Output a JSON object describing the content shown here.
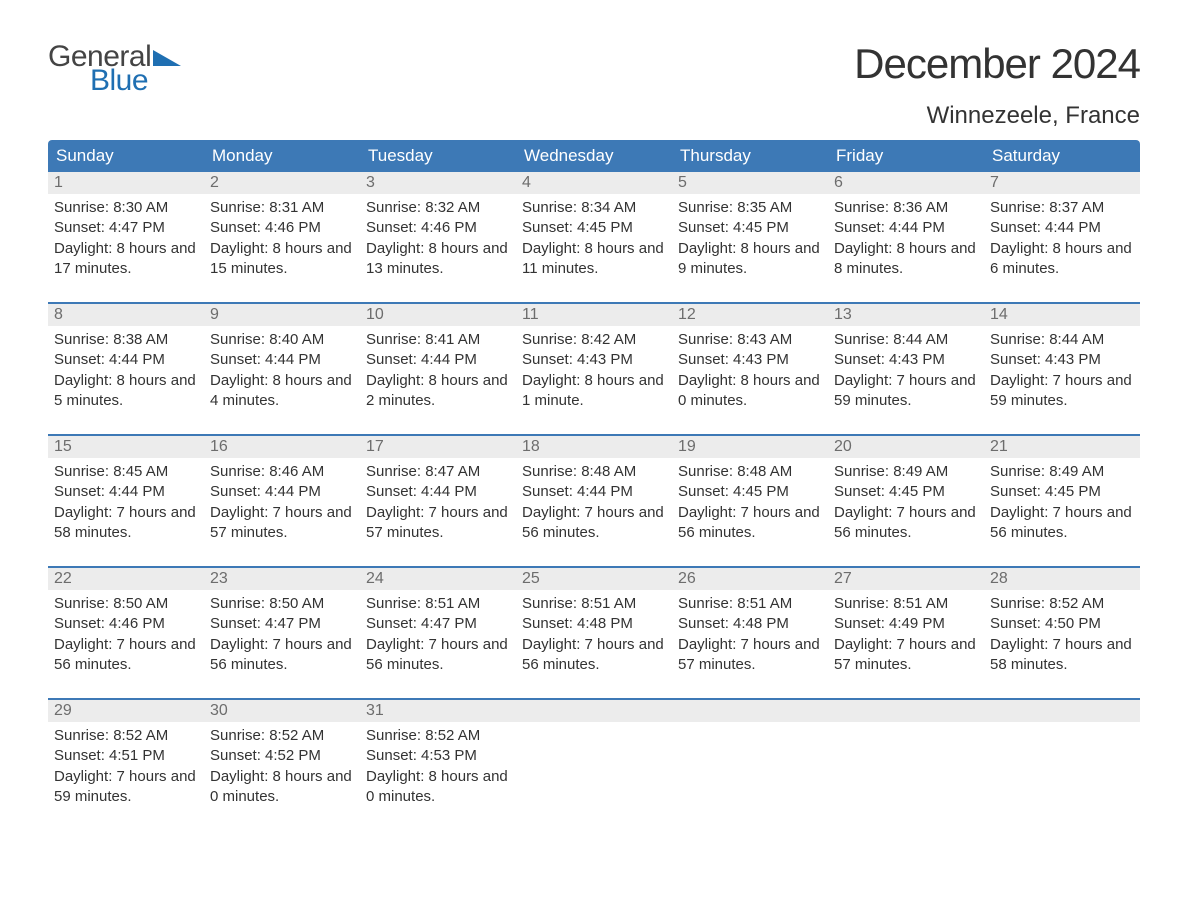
{
  "brand": {
    "text_general": "General",
    "text_blue": "Blue",
    "triangle_color": "#1f6fb2",
    "text_general_color": "#444444",
    "text_blue_color": "#1f6fb2"
  },
  "title": "December 2024",
  "location": "Winnezeele, France",
  "header_bg": "#3d79b6",
  "header_text_color": "#ffffff",
  "daynum_bg": "#ececec",
  "daynum_color": "#6d6d6d",
  "rule_color": "#3d79b6",
  "body_text_color": "#333333",
  "page_bg": "#ffffff",
  "fontsize_title": 42,
  "fontsize_location": 24,
  "fontsize_header": 17,
  "fontsize_daynum": 16,
  "fontsize_body": 15,
  "columns": [
    "Sunday",
    "Monday",
    "Tuesday",
    "Wednesday",
    "Thursday",
    "Friday",
    "Saturday"
  ],
  "weeks": [
    [
      {
        "n": "1",
        "sunrise": "8:30 AM",
        "sunset": "4:47 PM",
        "daylight": "8 hours and 17 minutes."
      },
      {
        "n": "2",
        "sunrise": "8:31 AM",
        "sunset": "4:46 PM",
        "daylight": "8 hours and 15 minutes."
      },
      {
        "n": "3",
        "sunrise": "8:32 AM",
        "sunset": "4:46 PM",
        "daylight": "8 hours and 13 minutes."
      },
      {
        "n": "4",
        "sunrise": "8:34 AM",
        "sunset": "4:45 PM",
        "daylight": "8 hours and 11 minutes."
      },
      {
        "n": "5",
        "sunrise": "8:35 AM",
        "sunset": "4:45 PM",
        "daylight": "8 hours and 9 minutes."
      },
      {
        "n": "6",
        "sunrise": "8:36 AM",
        "sunset": "4:44 PM",
        "daylight": "8 hours and 8 minutes."
      },
      {
        "n": "7",
        "sunrise": "8:37 AM",
        "sunset": "4:44 PM",
        "daylight": "8 hours and 6 minutes."
      }
    ],
    [
      {
        "n": "8",
        "sunrise": "8:38 AM",
        "sunset": "4:44 PM",
        "daylight": "8 hours and 5 minutes."
      },
      {
        "n": "9",
        "sunrise": "8:40 AM",
        "sunset": "4:44 PM",
        "daylight": "8 hours and 4 minutes."
      },
      {
        "n": "10",
        "sunrise": "8:41 AM",
        "sunset": "4:44 PM",
        "daylight": "8 hours and 2 minutes."
      },
      {
        "n": "11",
        "sunrise": "8:42 AM",
        "sunset": "4:43 PM",
        "daylight": "8 hours and 1 minute."
      },
      {
        "n": "12",
        "sunrise": "8:43 AM",
        "sunset": "4:43 PM",
        "daylight": "8 hours and 0 minutes."
      },
      {
        "n": "13",
        "sunrise": "8:44 AM",
        "sunset": "4:43 PM",
        "daylight": "7 hours and 59 minutes."
      },
      {
        "n": "14",
        "sunrise": "8:44 AM",
        "sunset": "4:43 PM",
        "daylight": "7 hours and 59 minutes."
      }
    ],
    [
      {
        "n": "15",
        "sunrise": "8:45 AM",
        "sunset": "4:44 PM",
        "daylight": "7 hours and 58 minutes."
      },
      {
        "n": "16",
        "sunrise": "8:46 AM",
        "sunset": "4:44 PM",
        "daylight": "7 hours and 57 minutes."
      },
      {
        "n": "17",
        "sunrise": "8:47 AM",
        "sunset": "4:44 PM",
        "daylight": "7 hours and 57 minutes."
      },
      {
        "n": "18",
        "sunrise": "8:48 AM",
        "sunset": "4:44 PM",
        "daylight": "7 hours and 56 minutes."
      },
      {
        "n": "19",
        "sunrise": "8:48 AM",
        "sunset": "4:45 PM",
        "daylight": "7 hours and 56 minutes."
      },
      {
        "n": "20",
        "sunrise": "8:49 AM",
        "sunset": "4:45 PM",
        "daylight": "7 hours and 56 minutes."
      },
      {
        "n": "21",
        "sunrise": "8:49 AM",
        "sunset": "4:45 PM",
        "daylight": "7 hours and 56 minutes."
      }
    ],
    [
      {
        "n": "22",
        "sunrise": "8:50 AM",
        "sunset": "4:46 PM",
        "daylight": "7 hours and 56 minutes."
      },
      {
        "n": "23",
        "sunrise": "8:50 AM",
        "sunset": "4:47 PM",
        "daylight": "7 hours and 56 minutes."
      },
      {
        "n": "24",
        "sunrise": "8:51 AM",
        "sunset": "4:47 PM",
        "daylight": "7 hours and 56 minutes."
      },
      {
        "n": "25",
        "sunrise": "8:51 AM",
        "sunset": "4:48 PM",
        "daylight": "7 hours and 56 minutes."
      },
      {
        "n": "26",
        "sunrise": "8:51 AM",
        "sunset": "4:48 PM",
        "daylight": "7 hours and 57 minutes."
      },
      {
        "n": "27",
        "sunrise": "8:51 AM",
        "sunset": "4:49 PM",
        "daylight": "7 hours and 57 minutes."
      },
      {
        "n": "28",
        "sunrise": "8:52 AM",
        "sunset": "4:50 PM",
        "daylight": "7 hours and 58 minutes."
      }
    ],
    [
      {
        "n": "29",
        "sunrise": "8:52 AM",
        "sunset": "4:51 PM",
        "daylight": "7 hours and 59 minutes."
      },
      {
        "n": "30",
        "sunrise": "8:52 AM",
        "sunset": "4:52 PM",
        "daylight": "8 hours and 0 minutes."
      },
      {
        "n": "31",
        "sunrise": "8:52 AM",
        "sunset": "4:53 PM",
        "daylight": "8 hours and 0 minutes."
      },
      null,
      null,
      null,
      null
    ]
  ],
  "labels": {
    "sunrise": "Sunrise:",
    "sunset": "Sunset:",
    "daylight": "Daylight:"
  }
}
